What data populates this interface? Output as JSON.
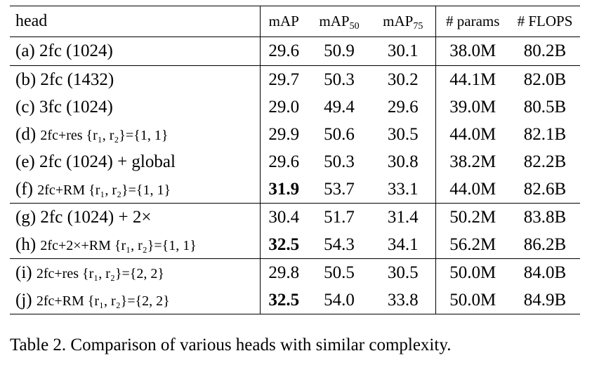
{
  "table": {
    "headers": {
      "head": "head",
      "map": "mAP",
      "map50_base": "mAP",
      "map50_sub": "50",
      "map75_base": "mAP",
      "map75_sub": "75",
      "params": "# params",
      "flops": "# FLOPS"
    },
    "rows": [
      {
        "label_large": "(a) 2fc (1024)",
        "label_small": "",
        "map": "29.6",
        "map50": "50.9",
        "map75": "30.1",
        "params": "38.0M",
        "flops": "80.2B",
        "map_bold": false
      },
      {
        "label_large": "(b) 2fc (1432)",
        "label_small": "",
        "map": "29.7",
        "map50": "50.3",
        "map75": "30.2",
        "params": "44.1M",
        "flops": "82.0B",
        "map_bold": false
      },
      {
        "label_large": "(c) 3fc (1024)",
        "label_small": "",
        "map": "29.0",
        "map50": "49.4",
        "map75": "29.6",
        "params": "39.0M",
        "flops": "80.5B",
        "map_bold": false
      },
      {
        "label_large": "(d) ",
        "label_small": "2fc+res {r₁, r₂}={1, 1}",
        "map": "29.9",
        "map50": "50.6",
        "map75": "30.5",
        "params": "44.0M",
        "flops": "82.1B",
        "map_bold": false
      },
      {
        "label_large": "(e) 2fc (1024) + global",
        "label_small": "",
        "map": "29.6",
        "map50": "50.3",
        "map75": "30.8",
        "params": "38.2M",
        "flops": "82.2B",
        "map_bold": false
      },
      {
        "label_large": "(f) ",
        "label_small": "2fc+RM {r₁, r₂}={1, 1}",
        "map": "31.9",
        "map50": "53.7",
        "map75": "33.1",
        "params": "44.0M",
        "flops": "82.6B",
        "map_bold": true
      },
      {
        "label_large": "(g) 2fc (1024) + 2×",
        "label_small": "",
        "map": "30.4",
        "map50": "51.7",
        "map75": "31.4",
        "params": "50.2M",
        "flops": "83.8B",
        "map_bold": false
      },
      {
        "label_large": "(h) ",
        "label_small": "2fc+2×+RM {r₁, r₂}={1, 1}",
        "map": "32.5",
        "map50": "54.3",
        "map75": "34.1",
        "params": "56.2M",
        "flops": "86.2B",
        "map_bold": true
      },
      {
        "label_large": "(i) ",
        "label_small": "2fc+res {r₁, r₂}={2, 2}",
        "map": "29.8",
        "map50": "50.5",
        "map75": "30.5",
        "params": "50.0M",
        "flops": "84.0B",
        "map_bold": false
      },
      {
        "label_large": "(j) ",
        "label_small": "2fc+RM {r₁, r₂}={2, 2}",
        "map": "32.5",
        "map50": "54.0",
        "map75": "33.8",
        "params": "50.0M",
        "flops": "84.9B",
        "map_bold": true
      }
    ]
  },
  "caption": "Table 2. Comparison of various heads with similar complexity."
}
